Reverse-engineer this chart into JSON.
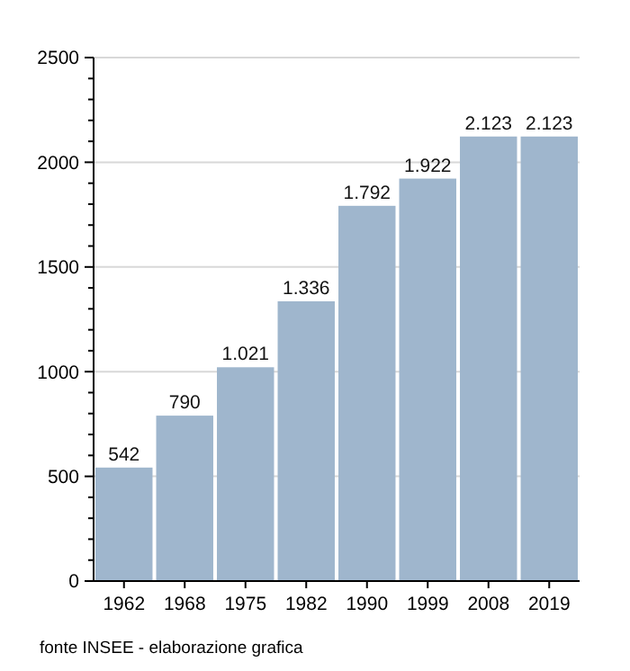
{
  "chart_data": {
    "type": "bar",
    "categories": [
      "1962",
      "1968",
      "1975",
      "1982",
      "1990",
      "1999",
      "2008",
      "2019"
    ],
    "values": [
      542,
      790,
      1021,
      1336,
      1792,
      1922,
      2123,
      2123
    ],
    "value_labels": [
      "542",
      "790",
      "1.021",
      "1.336",
      "1.792",
      "1.922",
      "2.123",
      "2.123"
    ],
    "color": "#9fb6cd",
    "ylim": [
      0,
      2500
    ],
    "yticks": [
      0,
      {
        "value": 100,
        "label": null
      },
      {
        "value": 200,
        "label": null
      },
      {
        "value": 300,
        "label": null
      },
      {
        "value": 400,
        "label": null
      },
      500,
      {
        "value": 600,
        "label": null
      },
      {
        "value": 700,
        "label": null
      },
      {
        "value": 800,
        "label": null
      },
      {
        "value": 900,
        "label": null
      },
      1000,
      {
        "value": 1100,
        "label": null
      },
      {
        "value": 1200,
        "label": null
      },
      {
        "value": 1300,
        "label": null
      },
      {
        "value": 1400,
        "label": null
      },
      1500,
      {
        "value": 1600,
        "label": null
      },
      {
        "value": 1700,
        "label": null
      },
      {
        "value": 1800,
        "label": null
      },
      {
        "value": 1900,
        "label": null
      },
      2000,
      {
        "value": 2100,
        "label": null
      },
      {
        "value": 2200,
        "label": null
      },
      {
        "value": 2300,
        "label": null
      },
      {
        "value": 2400,
        "label": null
      },
      2500
    ],
    "grid": "y",
    "annotations": [
      "fonte INSEE - elaborazione grafica"
    ]
  }
}
